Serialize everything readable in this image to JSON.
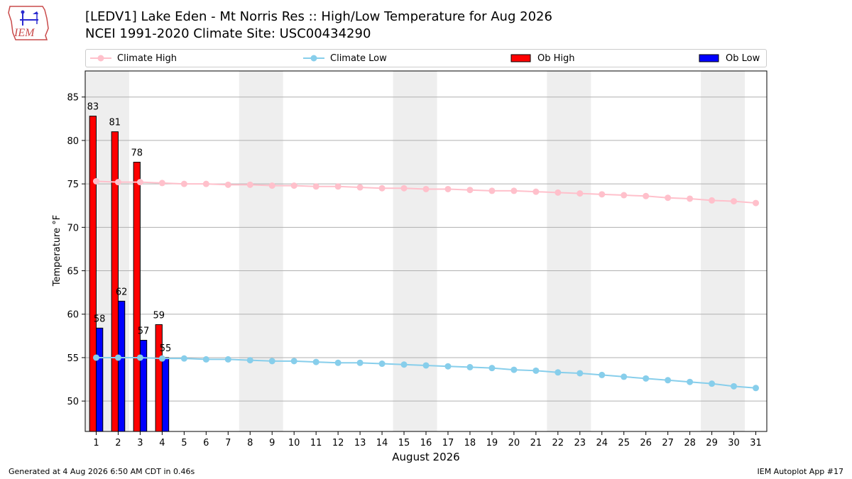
{
  "header": {
    "title_line1": "[LEDV1] Lake Eden - Mt Norris Res :: High/Low Temperature for Aug 2026",
    "title_line2": "NCEI 1991-2020 Climate Site: USC00434290",
    "logo_text": "IEM"
  },
  "footer": {
    "generated": "Generated at 4 Aug 2026 6:50 AM CDT in 0.46s",
    "app": "IEM Autoplot App #17"
  },
  "colors": {
    "climate_high": "#ffc0cb",
    "climate_low": "#87ceeb",
    "ob_high": "#ff0000",
    "ob_low": "#0000ff",
    "weekend_shade": "#eeeeee",
    "grid": "#b0b0b0"
  },
  "chart_data": {
    "type": "bar",
    "xlabel": "August 2026",
    "ylabel": "Temperature °F",
    "xlim": [
      0.5,
      31.5
    ],
    "ylim": [
      46.5,
      88
    ],
    "yticks": [
      50,
      55,
      60,
      65,
      70,
      75,
      80,
      85
    ],
    "x": [
      1,
      2,
      3,
      4,
      5,
      6,
      7,
      8,
      9,
      10,
      11,
      12,
      13,
      14,
      15,
      16,
      17,
      18,
      19,
      20,
      21,
      22,
      23,
      24,
      25,
      26,
      27,
      28,
      29,
      30,
      31
    ],
    "weekend_spans": [
      [
        0.5,
        2.5
      ],
      [
        7.5,
        9.5
      ],
      [
        14.5,
        16.5
      ],
      [
        21.5,
        23.5
      ],
      [
        28.5,
        30.5
      ]
    ],
    "grid": "horizontal",
    "legend_position": "top",
    "series": [
      {
        "name": "Climate High",
        "kind": "line",
        "values": [
          75.3,
          75.2,
          75.2,
          75.1,
          75.0,
          75.0,
          74.9,
          74.9,
          74.8,
          74.8,
          74.7,
          74.7,
          74.6,
          74.5,
          74.5,
          74.4,
          74.4,
          74.3,
          74.2,
          74.2,
          74.1,
          74.0,
          73.9,
          73.8,
          73.7,
          73.6,
          73.4,
          73.3,
          73.1,
          73.0,
          72.8
        ]
      },
      {
        "name": "Climate Low",
        "kind": "line",
        "values": [
          55.0,
          55.0,
          55.0,
          54.9,
          54.9,
          54.8,
          54.8,
          54.7,
          54.6,
          54.6,
          54.5,
          54.4,
          54.4,
          54.3,
          54.2,
          54.1,
          54.0,
          53.9,
          53.8,
          53.6,
          53.5,
          53.3,
          53.2,
          53.0,
          52.8,
          52.6,
          52.4,
          52.2,
          52.0,
          51.7,
          51.5
        ]
      },
      {
        "name": "Ob High",
        "kind": "bar",
        "x": [
          1,
          2,
          3,
          4
        ],
        "values": [
          82.8,
          81.0,
          77.5,
          58.8
        ],
        "labels": [
          "83",
          "81",
          "78",
          "59"
        ]
      },
      {
        "name": "Ob Low",
        "kind": "bar",
        "x": [
          1,
          2,
          3,
          4
        ],
        "values": [
          58.4,
          61.5,
          57.0,
          55.0
        ],
        "labels": [
          "58",
          "62",
          "57",
          "55"
        ]
      }
    ]
  }
}
